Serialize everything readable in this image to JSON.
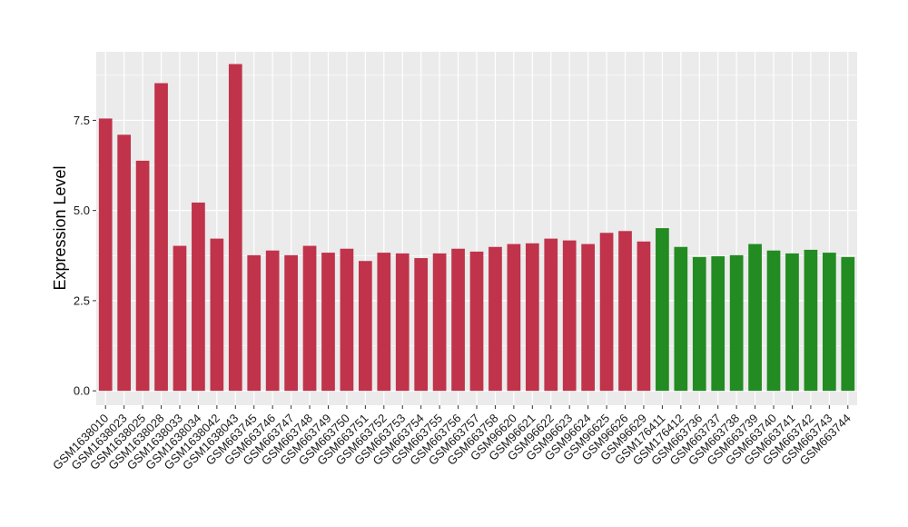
{
  "chart_data": {
    "type": "bar",
    "ylabel": "Expression Level",
    "xlabel": "",
    "ylim": [
      -0.4,
      9.4
    ],
    "yticks": [
      0.0,
      2.5,
      5.0,
      7.5
    ],
    "ytick_labels": [
      "0.0",
      "2.5",
      "5.0",
      "7.5"
    ],
    "grid": true,
    "background_color": "#EBEBEB",
    "colors": {
      "red": "#C0334B",
      "green": "#228B22"
    },
    "categories": [
      "GSM1638010",
      "GSM1638023",
      "GSM1638025",
      "GSM1638028",
      "GSM1638033",
      "GSM1638034",
      "GSM1638042",
      "GSM1638043",
      "GSM663745",
      "GSM663746",
      "GSM663747",
      "GSM663748",
      "GSM663749",
      "GSM663750",
      "GSM663751",
      "GSM663752",
      "GSM663753",
      "GSM663754",
      "GSM663755",
      "GSM663756",
      "GSM663757",
      "GSM663758",
      "GSM96620",
      "GSM96621",
      "GSM96622",
      "GSM96623",
      "GSM96624",
      "GSM96625",
      "GSM96626",
      "GSM96629",
      "GSM176411",
      "GSM176412",
      "GSM663736",
      "GSM663737",
      "GSM663738",
      "GSM663739",
      "GSM663740",
      "GSM663741",
      "GSM663742",
      "GSM663743",
      "GSM663744"
    ],
    "values": [
      7.55,
      7.1,
      6.38,
      8.53,
      4.02,
      5.22,
      4.22,
      9.06,
      3.76,
      3.89,
      3.76,
      4.02,
      3.83,
      3.94,
      3.6,
      3.83,
      3.81,
      3.68,
      3.81,
      3.94,
      3.86,
      3.99,
      4.07,
      4.09,
      4.22,
      4.17,
      4.07,
      4.38,
      4.43,
      4.14,
      4.51,
      3.99,
      3.71,
      3.73,
      3.76,
      4.07,
      3.89,
      3.81,
      3.91,
      3.83,
      3.71
    ],
    "bar_groups": [
      "red",
      "red",
      "red",
      "red",
      "red",
      "red",
      "red",
      "red",
      "red",
      "red",
      "red",
      "red",
      "red",
      "red",
      "red",
      "red",
      "red",
      "red",
      "red",
      "red",
      "red",
      "red",
      "red",
      "red",
      "red",
      "red",
      "red",
      "red",
      "red",
      "red",
      "green",
      "green",
      "green",
      "green",
      "green",
      "green",
      "green",
      "green",
      "green",
      "green",
      "green"
    ]
  }
}
